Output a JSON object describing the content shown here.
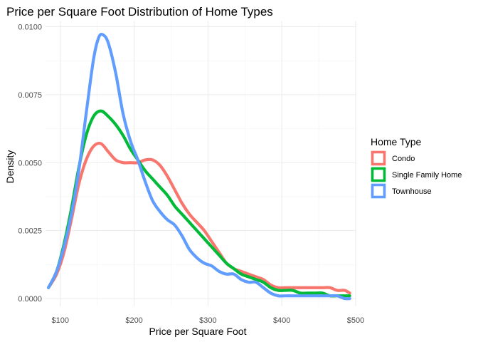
{
  "chart_data": {
    "type": "line",
    "title": "Price per Square Foot Distribution of Home Types",
    "xlabel": "Price per Square Foot",
    "ylabel": "Density",
    "xlim": [
      80,
      500
    ],
    "ylim": [
      0,
      0.0105
    ],
    "x_ticks": [
      100,
      200,
      300,
      400,
      500
    ],
    "x_tick_labels": [
      "$100",
      "$200",
      "$300",
      "$400",
      "$500"
    ],
    "y_ticks": [
      0,
      0.0025,
      0.005,
      0.0075,
      0.01
    ],
    "y_tick_labels": [
      "0.0000",
      "0.0025",
      "0.0050",
      "0.0075",
      "0.0100"
    ],
    "grid": true,
    "legend": {
      "title": "Home Type",
      "position": "right"
    },
    "series": [
      {
        "name": "Condo",
        "color": "#f8766d",
        "points": [
          [
            84,
            0.0004
          ],
          [
            95,
            0.0009
          ],
          [
            105,
            0.0017
          ],
          [
            115,
            0.0029
          ],
          [
            125,
            0.0042
          ],
          [
            135,
            0.0051
          ],
          [
            145,
            0.0056
          ],
          [
            155,
            0.0057
          ],
          [
            165,
            0.0054
          ],
          [
            175,
            0.0051
          ],
          [
            185,
            0.005
          ],
          [
            195,
            0.005
          ],
          [
            205,
            0.005
          ],
          [
            215,
            0.0051
          ],
          [
            225,
            0.0051
          ],
          [
            235,
            0.0049
          ],
          [
            245,
            0.0045
          ],
          [
            255,
            0.004
          ],
          [
            265,
            0.0035
          ],
          [
            275,
            0.0031
          ],
          [
            285,
            0.0028
          ],
          [
            295,
            0.0025
          ],
          [
            305,
            0.0021
          ],
          [
            315,
            0.0017
          ],
          [
            325,
            0.0013
          ],
          [
            335,
            0.0011
          ],
          [
            345,
            0.001
          ],
          [
            355,
            0.0009
          ],
          [
            365,
            0.0008
          ],
          [
            375,
            0.0007
          ],
          [
            385,
            0.0005
          ],
          [
            395,
            0.0004
          ],
          [
            405,
            0.0004
          ],
          [
            415,
            0.0004
          ],
          [
            425,
            0.0004
          ],
          [
            435,
            0.0004
          ],
          [
            445,
            0.0004
          ],
          [
            455,
            0.0004
          ],
          [
            465,
            0.0004
          ],
          [
            475,
            0.0003
          ],
          [
            485,
            0.0003
          ],
          [
            492,
            0.0002
          ]
        ]
      },
      {
        "name": "Single Family Home",
        "color": "#00ba38",
        "points": [
          [
            84,
            0.0004
          ],
          [
            95,
            0.001
          ],
          [
            105,
            0.002
          ],
          [
            115,
            0.0033
          ],
          [
            125,
            0.0048
          ],
          [
            135,
            0.006
          ],
          [
            145,
            0.0067
          ],
          [
            155,
            0.0069
          ],
          [
            165,
            0.0067
          ],
          [
            175,
            0.0064
          ],
          [
            185,
            0.006
          ],
          [
            195,
            0.0055
          ],
          [
            205,
            0.0051
          ],
          [
            215,
            0.0047
          ],
          [
            225,
            0.0044
          ],
          [
            235,
            0.0041
          ],
          [
            245,
            0.0038
          ],
          [
            255,
            0.0034
          ],
          [
            265,
            0.0031
          ],
          [
            275,
            0.0028
          ],
          [
            285,
            0.0025
          ],
          [
            295,
            0.0022
          ],
          [
            305,
            0.0019
          ],
          [
            315,
            0.0016
          ],
          [
            325,
            0.0013
          ],
          [
            335,
            0.0011
          ],
          [
            345,
            0.0009
          ],
          [
            355,
            0.0008
          ],
          [
            365,
            0.0007
          ],
          [
            375,
            0.0006
          ],
          [
            385,
            0.0004
          ],
          [
            395,
            0.0003
          ],
          [
            405,
            0.0003
          ],
          [
            415,
            0.0003
          ],
          [
            425,
            0.0002
          ],
          [
            435,
            0.0002
          ],
          [
            445,
            0.0002
          ],
          [
            455,
            0.0002
          ],
          [
            465,
            0.0001
          ],
          [
            475,
            0.0001
          ],
          [
            485,
            0.0001
          ],
          [
            492,
            0.0001
          ]
        ]
      },
      {
        "name": "Townhouse",
        "color": "#619cff",
        "points": [
          [
            84,
            0.0004
          ],
          [
            95,
            0.001
          ],
          [
            105,
            0.0019
          ],
          [
            115,
            0.0031
          ],
          [
            125,
            0.0047
          ],
          [
            135,
            0.0068
          ],
          [
            145,
            0.0088
          ],
          [
            152,
            0.0096
          ],
          [
            158,
            0.0097
          ],
          [
            165,
            0.0094
          ],
          [
            175,
            0.0083
          ],
          [
            185,
            0.0068
          ],
          [
            195,
            0.0058
          ],
          [
            205,
            0.0051
          ],
          [
            215,
            0.0043
          ],
          [
            225,
            0.0036
          ],
          [
            235,
            0.0032
          ],
          [
            245,
            0.0029
          ],
          [
            255,
            0.0027
          ],
          [
            265,
            0.0023
          ],
          [
            275,
            0.0018
          ],
          [
            285,
            0.0015
          ],
          [
            295,
            0.0013
          ],
          [
            305,
            0.0012
          ],
          [
            315,
            0.001
          ],
          [
            325,
            0.0009
          ],
          [
            335,
            0.0009
          ],
          [
            345,
            0.0007
          ],
          [
            355,
            0.0006
          ],
          [
            365,
            0.0006
          ],
          [
            375,
            0.0004
          ],
          [
            385,
            0.0002
          ],
          [
            395,
            0.0001
          ],
          [
            405,
            0.0001
          ],
          [
            415,
            0.0001
          ],
          [
            425,
            0.0001
          ],
          [
            435,
            0.0001
          ],
          [
            445,
            0.0001
          ],
          [
            455,
            0.0001
          ],
          [
            465,
            0.0001
          ],
          [
            475,
            0.0001
          ],
          [
            485,
            0.0
          ],
          [
            492,
            0.0
          ]
        ]
      }
    ]
  }
}
